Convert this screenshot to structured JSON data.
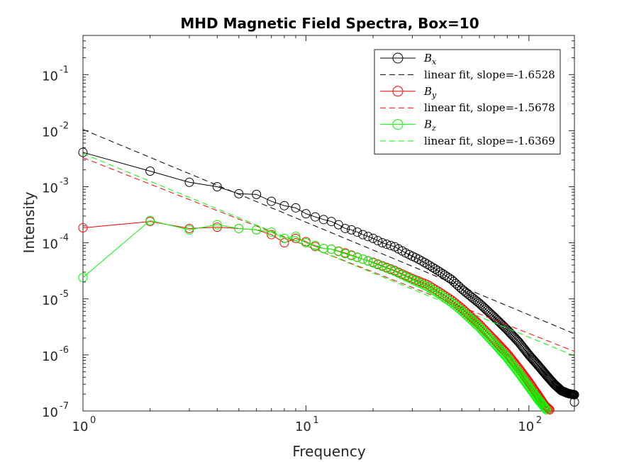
{
  "chart_data": {
    "type": "scatter",
    "title": "MHD Magnetic Field Spectra, Box=10",
    "xlabel": "Frequency",
    "ylabel": "Intensity",
    "xscale": "log",
    "yscale": "log",
    "xlim": [
      1,
      160
    ],
    "ylim": [
      1e-07,
      0.5
    ],
    "xticks": [
      {
        "value": 1,
        "base": "10",
        "exp": "0"
      },
      {
        "value": 10,
        "base": "10",
        "exp": "1"
      },
      {
        "value": 100,
        "base": "10",
        "exp": "2"
      }
    ],
    "yticks": [
      {
        "value": 1e-07,
        "base": "10",
        "exp": "-7"
      },
      {
        "value": 1e-06,
        "base": "10",
        "exp": "-6"
      },
      {
        "value": 1e-05,
        "base": "10",
        "exp": "-5"
      },
      {
        "value": 0.0001,
        "base": "10",
        "exp": "-4"
      },
      {
        "value": 0.001,
        "base": "10",
        "exp": "-3"
      },
      {
        "value": 0.01,
        "base": "10",
        "exp": "-2"
      },
      {
        "value": 0.1,
        "base": "10",
        "exp": "-1"
      }
    ],
    "grid": false,
    "legend_position": "top-right",
    "legend": [
      {
        "label_main": "B",
        "label_sub": "x",
        "style": "line-marker",
        "color": "#000000"
      },
      {
        "label_main": "linear fit, slope=-1.6528",
        "style": "dashed",
        "color": "#000000"
      },
      {
        "label_main": "B",
        "label_sub": "y",
        "style": "line-marker",
        "color": "#ff0000"
      },
      {
        "label_main": "linear fit, slope=-1.5678",
        "style": "dashed",
        "color": "#ff0000"
      },
      {
        "label_main": "B",
        "label_sub": "z",
        "style": "line-marker",
        "color": "#00ff00"
      },
      {
        "label_main": "linear fit, slope=-1.6369",
        "style": "dashed",
        "color": "#00ff00"
      }
    ],
    "series": [
      {
        "name": "Bx",
        "color": "#000000",
        "x_max": 160,
        "anchors": [
          [
            1,
            0.0041
          ],
          [
            2,
            0.0019
          ],
          [
            3,
            0.0012
          ],
          [
            4,
            0.001
          ],
          [
            5,
            0.00075
          ],
          [
            6,
            0.00073
          ],
          [
            7,
            0.00055
          ],
          [
            8,
            0.00046
          ],
          [
            9,
            0.00042
          ],
          [
            10,
            0.00033
          ],
          [
            11,
            0.00029
          ],
          [
            12,
            0.00026
          ],
          [
            13,
            0.00024
          ],
          [
            14,
            0.00021
          ],
          [
            15,
            0.00018
          ],
          [
            16,
            0.00017
          ],
          [
            17,
            0.000155
          ],
          [
            18,
            0.00014
          ],
          [
            20,
            0.00012
          ],
          [
            22,
            0.0001
          ],
          [
            25,
            8.5e-05
          ],
          [
            28,
            6.6e-05
          ],
          [
            32,
            5.1e-05
          ],
          [
            36,
            3.9e-05
          ],
          [
            40,
            3e-05
          ],
          [
            45,
            2.2e-05
          ],
          [
            50,
            1.5e-05
          ],
          [
            55,
            1.1e-05
          ],
          [
            60,
            8.3e-06
          ],
          [
            65,
            6.2e-06
          ],
          [
            70,
            4.7e-06
          ],
          [
            75,
            3.6e-06
          ],
          [
            80,
            2.8e-06
          ],
          [
            90,
            1.7e-06
          ],
          [
            100,
            1e-06
          ],
          [
            110,
            6.5e-07
          ],
          [
            120,
            4.3e-07
          ],
          [
            130,
            3e-07
          ],
          [
            140,
            2.3e-07
          ],
          [
            150,
            2.05e-07
          ],
          [
            160,
            1.95e-07
          ]
        ],
        "extra_points": [
          [
            160,
            1.45e-07
          ]
        ],
        "fit": {
          "slope": -1.6528,
          "intercept_y_at_1": 0.0105
        }
      },
      {
        "name": "By",
        "color": "#ff0000",
        "x_max": 124,
        "anchors": [
          [
            1,
            0.000185
          ],
          [
            2,
            0.00024
          ],
          [
            3,
            0.00018
          ],
          [
            4,
            0.00019
          ],
          [
            5,
            0.00018
          ],
          [
            6,
            0.00017
          ],
          [
            7,
            0.00014
          ],
          [
            8,
            0.0001
          ],
          [
            9,
            0.00012
          ],
          [
            10,
            0.000105
          ],
          [
            11,
            8.6e-05
          ],
          [
            12,
            7.9e-05
          ],
          [
            13,
            7.7e-05
          ],
          [
            15,
            6.6e-05
          ],
          [
            18,
            5.1e-05
          ],
          [
            20,
            4.5e-05
          ],
          [
            25,
            3.2e-05
          ],
          [
            30,
            2.3e-05
          ],
          [
            35,
            1.8e-05
          ],
          [
            40,
            1.3e-05
          ],
          [
            45,
            9.5e-06
          ],
          [
            50,
            6.8e-06
          ],
          [
            55,
            4.8e-06
          ],
          [
            60,
            3.5e-06
          ],
          [
            65,
            2.5e-06
          ],
          [
            70,
            1.85e-06
          ],
          [
            80,
            1.05e-06
          ],
          [
            90,
            5.8e-07
          ],
          [
            100,
            3.3e-07
          ],
          [
            110,
            1.9e-07
          ],
          [
            118,
            1.25e-07
          ],
          [
            124,
            1.05e-07
          ]
        ],
        "extra_points": [],
        "fit": {
          "slope": -1.5678,
          "intercept_y_at_1": 0.0033
        }
      },
      {
        "name": "Bz",
        "color": "#00ff00",
        "x_max": 120,
        "anchors": [
          [
            1,
            2.4e-05
          ],
          [
            2,
            0.00025
          ],
          [
            3,
            0.00017
          ],
          [
            4,
            0.00021
          ],
          [
            5,
            0.00018
          ],
          [
            6,
            0.00017
          ],
          [
            7,
            0.000155
          ],
          [
            8,
            0.00012
          ],
          [
            9,
            0.00013
          ],
          [
            10,
            0.0001
          ],
          [
            11,
            9e-05
          ],
          [
            12,
            7.9e-05
          ],
          [
            13,
            7.7e-05
          ],
          [
            15,
            6.4e-05
          ],
          [
            18,
            5.1e-05
          ],
          [
            20,
            4.4e-05
          ],
          [
            25,
            3.1e-05
          ],
          [
            30,
            2.2e-05
          ],
          [
            35,
            1.65e-05
          ],
          [
            40,
            1.2e-05
          ],
          [
            45,
            8.6e-06
          ],
          [
            50,
            6.1e-06
          ],
          [
            55,
            4.3e-06
          ],
          [
            60,
            3.1e-06
          ],
          [
            65,
            2.2e-06
          ],
          [
            70,
            1.6e-06
          ],
          [
            80,
            8.8e-07
          ],
          [
            90,
            4.8e-07
          ],
          [
            100,
            2.7e-07
          ],
          [
            110,
            1.6e-07
          ],
          [
            120,
            1.05e-07
          ]
        ],
        "extra_points": [],
        "fit": {
          "slope": -1.6369,
          "intercept_y_at_1": 0.0039
        }
      }
    ]
  }
}
